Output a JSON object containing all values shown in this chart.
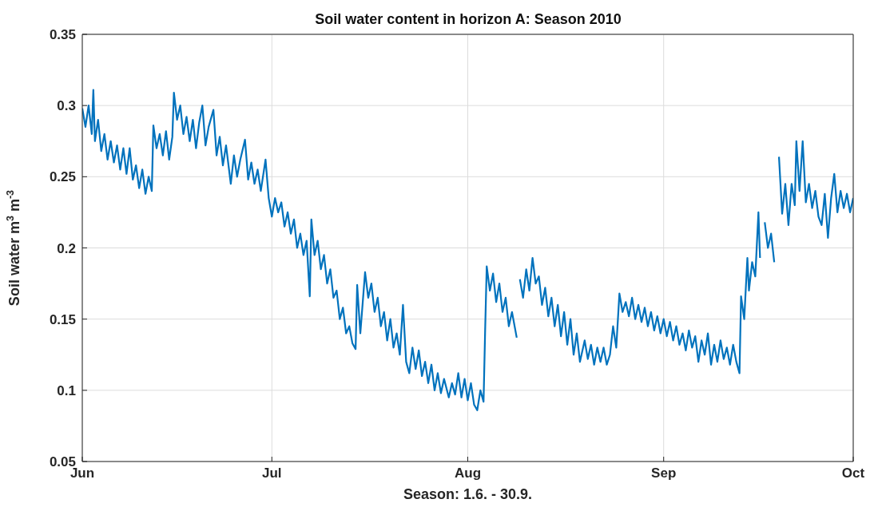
{
  "chart_data": {
    "type": "line",
    "title": "Soil water content in horizon A: Season 2010",
    "xlabel": "Season: 1.6. - 30.9.",
    "ylabel": "Soil water m$^{3}$ m$^{-3}$",
    "xlim": [
      "2010-06-01",
      "2010-10-01"
    ],
    "xticks": [
      {
        "value": "2010-06-01",
        "label": "Jun"
      },
      {
        "value": "2010-07-01",
        "label": "Jul"
      },
      {
        "value": "2010-08-01",
        "label": "Aug"
      },
      {
        "value": "2010-09-01",
        "label": "Sep"
      },
      {
        "value": "2010-10-01",
        "label": "Oct"
      }
    ],
    "ylim": [
      0.05,
      0.35
    ],
    "yticks": [
      0.05,
      0.1,
      0.15,
      0.2,
      0.25,
      0.3,
      0.35
    ],
    "grid": true,
    "marker": "none",
    "line_style": "solid",
    "series": [
      {
        "color": "#0072bd",
        "x": [
          "2010-06-01T00:00",
          "2010-06-01T12:00",
          "2010-06-02T00:00",
          "2010-06-02T12:00",
          "2010-06-02T18:00",
          "2010-06-03T00:00",
          "2010-06-03T12:00",
          "2010-06-04T00:00",
          "2010-06-04T12:00",
          "2010-06-05T00:00",
          "2010-06-05T12:00",
          "2010-06-06T00:00",
          "2010-06-06T12:00",
          "2010-06-07T00:00",
          "2010-06-07T12:00",
          "2010-06-08T00:00",
          "2010-06-08T12:00",
          "2010-06-09T00:00",
          "2010-06-09T12:00",
          "2010-06-10T00:00",
          "2010-06-10T12:00",
          "2010-06-11T00:00",
          "2010-06-11T12:00",
          "2010-06-12T00:00",
          "2010-06-12T06:00",
          "2010-06-12T18:00",
          "2010-06-13T06:00",
          "2010-06-13T18:00",
          "2010-06-14T06:00",
          "2010-06-14T18:00",
          "2010-06-15T06:00",
          "2010-06-15T12:00",
          "2010-06-16T00:00",
          "2010-06-16T12:00",
          "2010-06-17T00:00",
          "2010-06-17T12:00",
          "2010-06-18T00:00",
          "2010-06-18T12:00",
          "2010-06-19T00:00",
          "2010-06-19T12:00",
          "2010-06-20T00:00",
          "2010-06-20T12:00",
          "2010-06-21T00:00",
          "2010-06-21T18:00",
          "2010-06-22T06:00",
          "2010-06-22T18:00",
          "2010-06-23T06:00",
          "2010-06-23T18:00",
          "2010-06-24T12:00",
          "2010-06-25T00:00",
          "2010-06-25T12:00",
          "2010-06-26T00:00",
          "2010-06-26T18:00",
          "2010-06-27T06:00",
          "2010-06-27T18:00",
          "2010-06-28T06:00",
          "2010-06-28T18:00",
          "2010-06-29T06:00",
          "2010-06-30T00:00",
          "2010-06-30T12:00",
          "2010-07-01T00:00",
          "2010-07-01T12:00",
          "2010-07-02T00:00",
          "2010-07-02T12:00",
          "2010-07-03T00:00",
          "2010-07-03T12:00",
          "2010-07-04T00:00",
          "2010-07-04T12:00",
          "2010-07-05T00:00",
          "2010-07-05T12:00",
          "2010-07-06T00:00",
          "2010-07-06T12:00",
          "2010-07-07T00:00",
          "2010-07-07T06:00",
          "2010-07-07T18:00",
          "2010-07-08T06:00",
          "2010-07-08T18:00",
          "2010-07-09T06:00",
          "2010-07-09T18:00",
          "2010-07-10T06:00",
          "2010-07-10T18:00",
          "2010-07-11T06:00",
          "2010-07-11T18:00",
          "2010-07-12T06:00",
          "2010-07-12T18:00",
          "2010-07-13T06:00",
          "2010-07-13T18:00",
          "2010-07-14T06:00",
          "2010-07-14T12:00",
          "2010-07-15T00:00",
          "2010-07-15T18:00",
          "2010-07-16T06:00",
          "2010-07-16T18:00",
          "2010-07-17T06:00",
          "2010-07-17T18:00",
          "2010-07-18T06:00",
          "2010-07-18T18:00",
          "2010-07-19T06:00",
          "2010-07-19T18:00",
          "2010-07-20T06:00",
          "2010-07-20T18:00",
          "2010-07-21T06:00",
          "2010-07-21T18:00",
          "2010-07-22T06:00",
          "2010-07-22T18:00",
          "2010-07-23T06:00",
          "2010-07-23T18:00",
          "2010-07-24T06:00",
          "2010-07-24T18:00",
          "2010-07-25T06:00",
          "2010-07-25T18:00",
          "2010-07-26T06:00",
          "2010-07-26T18:00",
          "2010-07-27T06:00",
          "2010-07-27T18:00",
          "2010-07-28T06:00",
          "2010-07-29T00:00",
          "2010-07-29T12:00",
          "2010-07-30T00:00",
          "2010-07-30T12:00",
          "2010-07-31T00:00",
          "2010-07-31T12:00",
          "2010-08-01T00:00",
          "2010-08-01T12:00",
          "2010-08-02T00:00",
          "2010-08-02T12:00",
          "2010-08-03T00:00",
          "2010-08-03T12:00",
          "2010-08-03T18:00",
          "2010-08-04T00:00",
          "2010-08-04T12:00",
          "2010-08-05T00:00",
          "2010-08-05T12:00",
          "2010-08-06T00:00",
          "2010-08-06T12:00",
          "2010-08-07T00:00",
          "2010-08-07T12:00",
          "2010-08-08T00:00",
          "2010-08-08T18:00",
          "2010-08-09T00:00",
          "2010-08-09T06:00",
          "2010-08-09T18:00",
          "2010-08-10T06:00",
          "2010-08-10T18:00",
          "2010-08-11T06:00",
          "2010-08-11T18:00",
          "2010-08-12T06:00",
          "2010-08-12T18:00",
          "2010-08-13T06:00",
          "2010-08-13T18:00",
          "2010-08-14T06:00",
          "2010-08-14T18:00",
          "2010-08-15T06:00",
          "2010-08-15T18:00",
          "2010-08-16T06:00",
          "2010-08-16T18:00",
          "2010-08-17T06:00",
          "2010-08-17T18:00",
          "2010-08-18T06:00",
          "2010-08-18T18:00",
          "2010-08-19T12:00",
          "2010-08-20T00:00",
          "2010-08-20T12:00",
          "2010-08-21T00:00",
          "2010-08-21T12:00",
          "2010-08-22T00:00",
          "2010-08-22T12:00",
          "2010-08-23T00:00",
          "2010-08-23T12:00",
          "2010-08-24T00:00",
          "2010-08-24T12:00",
          "2010-08-25T00:00",
          "2010-08-25T12:00",
          "2010-08-26T00:00",
          "2010-08-26T12:00",
          "2010-08-27T00:00",
          "2010-08-27T12:00",
          "2010-08-28T00:00",
          "2010-08-28T12:00",
          "2010-08-29T00:00",
          "2010-08-29T12:00",
          "2010-08-30T00:00",
          "2010-08-30T12:00",
          "2010-08-31T00:00",
          "2010-08-31T12:00",
          "2010-09-01T00:00",
          "2010-09-01T12:00",
          "2010-09-02T00:00",
          "2010-09-02T12:00",
          "2010-09-03T00:00",
          "2010-09-03T12:00",
          "2010-09-04T00:00",
          "2010-09-04T12:00",
          "2010-09-05T00:00",
          "2010-09-05T12:00",
          "2010-09-06T00:00",
          "2010-09-06T12:00",
          "2010-09-07T00:00",
          "2010-09-07T12:00",
          "2010-09-08T00:00",
          "2010-09-08T12:00",
          "2010-09-09T00:00",
          "2010-09-09T12:00",
          "2010-09-10T00:00",
          "2010-09-10T12:00",
          "2010-09-11T00:00",
          "2010-09-11T12:00",
          "2010-09-12T00:00",
          "2010-09-12T12:00",
          "2010-09-13T00:00",
          "2010-09-13T06:00",
          "2010-09-13T18:00",
          "2010-09-14T06:00",
          "2010-09-14T12:00",
          "2010-09-15T00:00",
          "2010-09-15T12:00",
          "2010-09-16T00:00",
          "2010-09-16T06:00",
          "2010-09-16T12:00",
          "2010-09-17T00:00",
          "2010-09-17T12:00",
          "2010-09-18T00:00",
          "2010-09-18T12:00",
          "2010-09-18T18:00",
          "2010-09-19T06:00",
          "2010-09-19T18:00",
          "2010-09-20T06:00",
          "2010-09-20T18:00",
          "2010-09-21T06:00",
          "2010-09-21T18:00",
          "2010-09-22T00:00",
          "2010-09-22T12:00",
          "2010-09-23T00:00",
          "2010-09-23T12:00",
          "2010-09-24T00:00",
          "2010-09-24T12:00",
          "2010-09-25T00:00",
          "2010-09-25T12:00",
          "2010-09-26T00:00",
          "2010-09-26T12:00",
          "2010-09-27T00:00",
          "2010-09-27T12:00",
          "2010-09-28T00:00",
          "2010-09-28T12:00",
          "2010-09-29T00:00",
          "2010-09-29T12:00",
          "2010-09-30T00:00",
          "2010-09-30T12:00",
          "2010-10-01T00:00"
        ],
        "values": [
          0.298,
          0.285,
          0.3,
          0.28,
          0.311,
          0.275,
          0.29,
          0.268,
          0.28,
          0.262,
          0.275,
          0.26,
          0.272,
          0.255,
          0.27,
          0.252,
          0.27,
          0.248,
          0.258,
          0.242,
          0.255,
          0.238,
          0.25,
          0.24,
          0.286,
          0.27,
          0.28,
          0.265,
          0.282,
          0.262,
          0.278,
          0.309,
          0.29,
          0.3,
          0.28,
          0.292,
          0.275,
          0.29,
          0.27,
          0.288,
          0.3,
          0.272,
          0.285,
          0.297,
          0.265,
          0.278,
          0.258,
          0.272,
          0.245,
          0.265,
          0.25,
          0.262,
          0.276,
          0.248,
          0.26,
          0.245,
          0.255,
          0.24,
          0.262,
          0.235,
          0.222,
          0.235,
          0.225,
          0.232,
          0.215,
          0.225,
          0.21,
          0.22,
          0.2,
          0.21,
          0.195,
          0.205,
          0.166,
          0.22,
          0.195,
          0.205,
          0.185,
          0.195,
          0.175,
          0.185,
          0.165,
          0.17,
          0.15,
          0.158,
          0.14,
          0.145,
          0.133,
          0.129,
          0.174,
          0.14,
          0.183,
          0.165,
          0.175,
          0.155,
          0.165,
          0.145,
          0.155,
          0.135,
          0.15,
          0.13,
          0.14,
          0.125,
          0.16,
          0.12,
          0.112,
          0.13,
          0.115,
          0.128,
          0.11,
          0.12,
          0.105,
          0.118,
          0.1,
          0.112,
          0.098,
          0.108,
          0.095,
          0.105,
          0.097,
          0.112,
          0.095,
          0.108,
          0.093,
          0.105,
          0.09,
          0.086,
          0.1,
          0.092,
          0.142,
          0.187,
          0.17,
          0.182,
          0.162,
          0.175,
          0.155,
          0.165,
          0.145,
          0.155,
          0.137,
          null,
          0.178,
          0.165,
          0.185,
          0.17,
          0.193,
          0.175,
          0.18,
          0.16,
          0.172,
          0.152,
          0.165,
          0.145,
          0.16,
          0.138,
          0.155,
          0.132,
          0.15,
          0.125,
          0.14,
          0.12,
          0.135,
          0.122,
          0.132,
          0.118,
          0.13,
          0.12,
          0.13,
          0.118,
          0.125,
          0.145,
          0.13,
          0.168,
          0.155,
          0.162,
          0.152,
          0.165,
          0.15,
          0.16,
          0.148,
          0.158,
          0.145,
          0.155,
          0.142,
          0.152,
          0.14,
          0.15,
          0.138,
          0.148,
          0.135,
          0.145,
          0.132,
          0.14,
          0.128,
          0.142,
          0.13,
          0.138,
          0.12,
          0.135,
          0.125,
          0.14,
          0.118,
          0.132,
          0.12,
          0.135,
          0.122,
          0.13,
          0.118,
          0.132,
          0.12,
          0.112,
          0.166,
          0.15,
          0.193,
          0.17,
          0.19,
          0.18,
          0.225,
          0.193,
          null,
          0.218,
          0.2,
          0.21,
          0.19,
          null,
          0.264,
          0.224,
          0.245,
          0.216,
          0.245,
          0.23,
          0.275,
          0.24,
          0.275,
          0.232,
          0.245,
          0.228,
          0.24,
          0.222,
          0.216,
          0.238,
          0.207,
          0.235,
          0.252,
          0.225,
          0.24,
          0.228,
          0.238,
          0.225,
          0.235
        ]
      }
    ]
  }
}
